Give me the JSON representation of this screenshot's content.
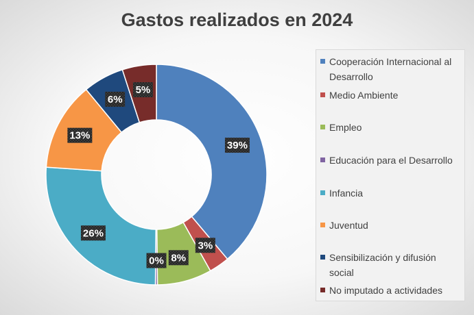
{
  "chart_data": {
    "type": "pie",
    "donut": true,
    "title": "Gastos realizados en 2024",
    "legend_position": "right",
    "slices": [
      {
        "label": "Cooperación Internacional al Desarrollo",
        "value": 39,
        "value_label": "39%",
        "color": "#4f81bd"
      },
      {
        "label": "Medio Ambiente",
        "value": 3,
        "value_label": "3%",
        "color": "#c0504d"
      },
      {
        "label": "Empleo",
        "value": 8,
        "value_label": "8%",
        "color": "#9bbb59"
      },
      {
        "label": "Educación para el Desarrollo",
        "value": 0.3,
        "value_label": "0%",
        "color": "#8064a2"
      },
      {
        "label": "Infancia",
        "value": 26,
        "value_label": "26%",
        "color": "#4bacc6"
      },
      {
        "label": "Juventud",
        "value": 13,
        "value_label": "13%",
        "color": "#f79646"
      },
      {
        "label": "Sensibilización y difusión social",
        "value": 6,
        "value_label": "6%",
        "color": "#1f497d"
      },
      {
        "label": "No imputado a actividades",
        "value": 5,
        "value_label": "5%",
        "color": "#772c2a"
      }
    ]
  }
}
